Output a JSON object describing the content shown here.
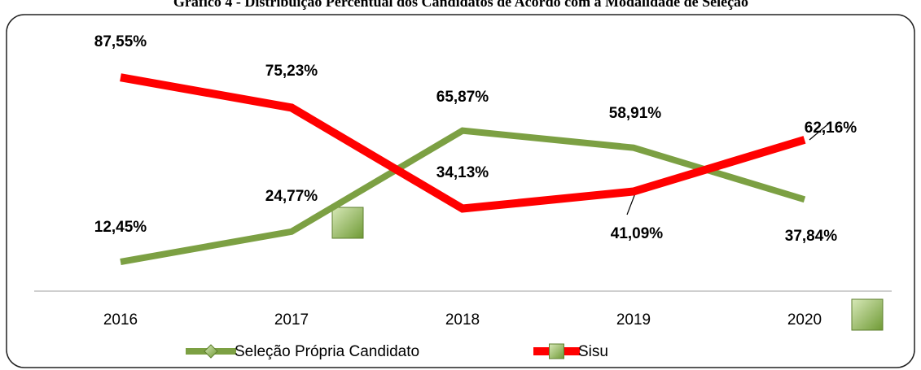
{
  "chart_data": {
    "type": "line",
    "title": "Gráfico 4 - Distribuição Percentual dos Candidatos de Acordo com a Modalidade de Seleção",
    "categories": [
      "2016",
      "2017",
      "2018",
      "2019",
      "2020"
    ],
    "ylim": [
      0,
      100
    ],
    "series": [
      {
        "name": "Seleção Própria Candidato",
        "color": "#7ca043",
        "values": [
          12.45,
          24.77,
          65.87,
          58.91,
          37.84
        ],
        "value_labels": [
          "12,45%",
          "24,77%",
          "65,87%",
          "58,91%",
          "37,84%"
        ]
      },
      {
        "name": "Sisu",
        "color": "#ff0000",
        "values": [
          87.55,
          75.23,
          34.13,
          41.09,
          62.16
        ],
        "value_labels": [
          "87,55%",
          "75,23%",
          "34,13%",
          "41,09%",
          "62,16%"
        ]
      }
    ]
  }
}
